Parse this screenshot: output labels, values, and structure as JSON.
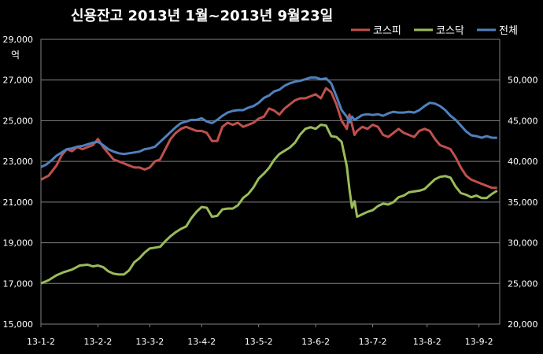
{
  "chart_data": {
    "type": "line",
    "title": "신용잔고 2013년 1월~2013년 9월23일",
    "left_axis_unit": "억",
    "left_axis": {
      "min": 15000,
      "max": 29000,
      "ticks": [
        "15,000",
        "17,000",
        "19,000",
        "21,000",
        "23,000",
        "25,000",
        "27,000",
        "29,000"
      ]
    },
    "right_axis": {
      "min": 20000,
      "max": 55000,
      "ticks": [
        "20,000",
        "25,000",
        "30,000",
        "35,000",
        "40,000",
        "45,000",
        "50,000"
      ]
    },
    "x_tick_labels": [
      "13-1-2",
      "13-2-2",
      "13-3-2",
      "13-4-2",
      "13-5-2",
      "13-6-2",
      "13-7-2",
      "13-8-2",
      "13-9-2"
    ],
    "x_range": [
      0,
      177
    ],
    "x_tick_positions": [
      0,
      22,
      42,
      62,
      84,
      106,
      128,
      149,
      169
    ],
    "grid": true,
    "legend_position": "top-right",
    "series": [
      {
        "name": "코스피",
        "axis": "left",
        "color": "#c0504d",
        "x": [
          0,
          3,
          6,
          8,
          10,
          12,
          14,
          16,
          18,
          20,
          22,
          24,
          26,
          28,
          30,
          32,
          34,
          36,
          38,
          40,
          42,
          44,
          46,
          48,
          50,
          52,
          54,
          56,
          58,
          60,
          62,
          64,
          66,
          68,
          70,
          72,
          74,
          76,
          78,
          80,
          82,
          84,
          86,
          88,
          90,
          92,
          94,
          96,
          98,
          100,
          102,
          104,
          106,
          108,
          110,
          112,
          114,
          116,
          118,
          119,
          120,
          121,
          122,
          124,
          126,
          128,
          130,
          132,
          134,
          136,
          138,
          140,
          142,
          144,
          146,
          148,
          150,
          152,
          154,
          156,
          158,
          160,
          162,
          164,
          166,
          168,
          170,
          172,
          174,
          176
        ],
        "y": [
          22100,
          22300,
          22800,
          23300,
          23600,
          23500,
          23700,
          23600,
          23700,
          23800,
          24100,
          23700,
          23400,
          23100,
          23000,
          22900,
          22800,
          22700,
          22700,
          22600,
          22700,
          23000,
          23100,
          23600,
          24100,
          24400,
          24600,
          24700,
          24600,
          24500,
          24500,
          24400,
          24000,
          24000,
          24700,
          24900,
          24800,
          24900,
          24700,
          24800,
          24900,
          25100,
          25200,
          25600,
          25500,
          25300,
          25600,
          25800,
          26000,
          26100,
          26100,
          26200,
          26300,
          26100,
          26600,
          26400,
          25800,
          25000,
          24600,
          25300,
          24800,
          24300,
          24500,
          24700,
          24600,
          24800,
          24700,
          24300,
          24200,
          24400,
          24600,
          24400,
          24300,
          24200,
          24500,
          24600,
          24500,
          24100,
          23800,
          23700,
          23600,
          23200,
          22700,
          22300,
          22100,
          22000,
          21900,
          21800,
          21700,
          21700
        ]
      },
      {
        "name": "코스닥",
        "axis": "right",
        "color": "#9bbb59",
        "x": [
          0,
          3,
          6,
          9,
          12,
          15,
          18,
          20,
          22,
          24,
          26,
          28,
          30,
          32,
          34,
          36,
          38,
          40,
          42,
          44,
          46,
          48,
          50,
          52,
          54,
          56,
          58,
          60,
          62,
          64,
          66,
          68,
          70,
          72,
          74,
          76,
          78,
          80,
          82,
          84,
          86,
          88,
          90,
          92,
          94,
          96,
          98,
          100,
          102,
          104,
          106,
          108,
          110,
          112,
          114,
          116,
          118,
          119,
          120,
          121,
          122,
          124,
          126,
          128,
          130,
          132,
          134,
          136,
          138,
          140,
          142,
          144,
          146,
          148,
          150,
          152,
          154,
          156,
          158,
          160,
          162,
          164,
          166,
          168,
          170,
          172,
          174,
          176
        ],
        "y": [
          25000,
          25400,
          26000,
          26400,
          26700,
          27200,
          27300,
          27100,
          27200,
          27000,
          26500,
          26200,
          26100,
          26100,
          26600,
          27600,
          28100,
          28800,
          29300,
          29400,
          29500,
          30200,
          30800,
          31300,
          31700,
          32000,
          33000,
          33800,
          34400,
          34300,
          33200,
          33300,
          34100,
          34200,
          34200,
          34600,
          35500,
          36000,
          36800,
          37900,
          38500,
          39200,
          40200,
          40900,
          41300,
          41700,
          42300,
          43300,
          44000,
          44200,
          44000,
          44500,
          44400,
          43100,
          43000,
          42400,
          39400,
          36600,
          34300,
          35100,
          33200,
          33500,
          33800,
          34000,
          34500,
          34800,
          34700,
          35000,
          35600,
          35800,
          36200,
          36300,
          36400,
          36600,
          37200,
          37800,
          38100,
          38200,
          38000,
          36900,
          36100,
          35900,
          35600,
          35800,
          35500,
          35500,
          36000,
          36400
        ]
      },
      {
        "name": "전체",
        "axis": "right",
        "color": "#4f81bd",
        "x": [
          0,
          2,
          4,
          6,
          8,
          10,
          12,
          14,
          16,
          18,
          20,
          22,
          24,
          26,
          28,
          30,
          32,
          34,
          36,
          38,
          40,
          42,
          44,
          46,
          48,
          50,
          52,
          54,
          56,
          58,
          60,
          62,
          64,
          66,
          68,
          70,
          72,
          74,
          76,
          78,
          80,
          82,
          84,
          86,
          88,
          90,
          92,
          94,
          96,
          98,
          100,
          102,
          104,
          106,
          108,
          110,
          112,
          114,
          116,
          118,
          119,
          120,
          121,
          122,
          124,
          126,
          128,
          130,
          132,
          134,
          136,
          138,
          140,
          142,
          144,
          146,
          148,
          150,
          152,
          154,
          156,
          158,
          160,
          162,
          164,
          166,
          168,
          170,
          172,
          174,
          176
        ],
        "y": [
          39300,
          39600,
          40100,
          40700,
          41100,
          41500,
          41600,
          41800,
          41900,
          42100,
          42300,
          42400,
          42000,
          41500,
          41200,
          41000,
          40900,
          41000,
          41100,
          41200,
          41500,
          41600,
          41800,
          42400,
          43000,
          43600,
          44200,
          44700,
          44900,
          45100,
          45100,
          45300,
          44900,
          44700,
          45100,
          45600,
          46000,
          46200,
          46300,
          46300,
          46600,
          46800,
          47200,
          47800,
          48100,
          48600,
          48800,
          49300,
          49600,
          49800,
          49900,
          50100,
          50300,
          50300,
          50100,
          50200,
          49600,
          48000,
          46300,
          45500,
          44800,
          45500,
          45100,
          45300,
          45700,
          45800,
          45700,
          45800,
          45600,
          45900,
          46100,
          46000,
          46000,
          46100,
          46000,
          46300,
          46800,
          47200,
          47100,
          46800,
          46300,
          45600,
          45100,
          44400,
          43700,
          43200,
          43100,
          42900,
          43100,
          42900,
          42900
        ]
      }
    ]
  }
}
